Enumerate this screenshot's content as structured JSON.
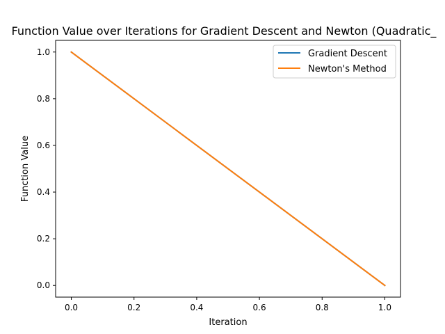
{
  "chart_data": {
    "type": "line",
    "title": "Function Value over Iterations for Gradient Descent and Newton (Quadratic_",
    "xlabel": "Iteration",
    "ylabel": "Function Value",
    "xlim": [
      -0.05,
      1.05
    ],
    "ylim": [
      -0.05,
      1.05
    ],
    "xticks": [
      0.0,
      0.2,
      0.4,
      0.6,
      0.8,
      1.0
    ],
    "xtick_labels": [
      "0.0",
      "0.2",
      "0.4",
      "0.6",
      "0.8",
      "1.0"
    ],
    "yticks": [
      0.0,
      0.2,
      0.4,
      0.6,
      0.8,
      1.0
    ],
    "ytick_labels": [
      "0.0",
      "0.2",
      "0.4",
      "0.6",
      "0.8",
      "1.0"
    ],
    "grid": false,
    "legend_position": "top-right",
    "series": [
      {
        "name": "Gradient Descent",
        "color": "#1f77b4",
        "x": [
          0,
          1
        ],
        "y": [
          1.0,
          0.0
        ]
      },
      {
        "name": "Newton's Method",
        "color": "#ff7f0e",
        "x": [
          0,
          1
        ],
        "y": [
          1.0,
          0.0
        ]
      }
    ]
  }
}
